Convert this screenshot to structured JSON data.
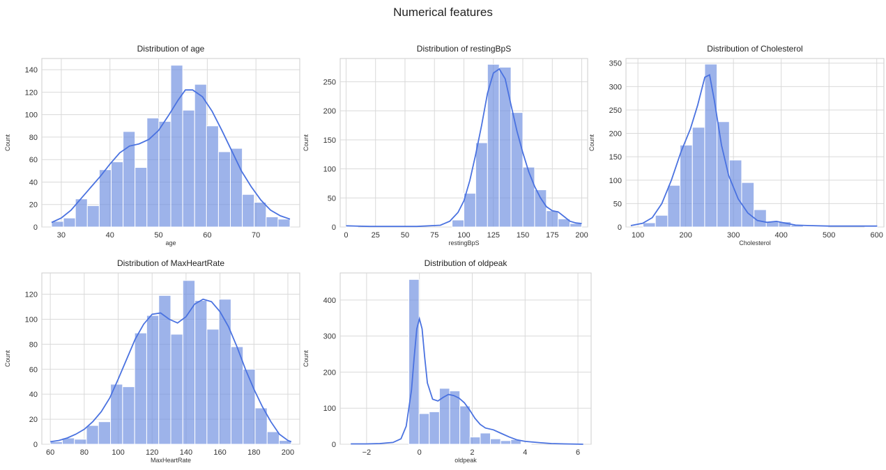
{
  "figure_title": "Numerical features",
  "chart_data": [
    {
      "type": "bar",
      "title": "Distribution of age",
      "xlabel": "age",
      "ylabel": "Count",
      "xlim": [
        26,
        79
      ],
      "ylim": [
        0,
        150
      ],
      "xticks": [
        30,
        40,
        50,
        60,
        70
      ],
      "yticks": [
        0,
        20,
        40,
        60,
        80,
        100,
        120,
        140
      ],
      "grid": true,
      "series": [
        {
          "bin_edges": [
            28,
            30.45,
            32.9,
            35.35,
            37.8,
            40.25,
            42.7,
            45.15,
            47.6,
            50.05,
            52.5,
            54.95,
            57.4,
            59.85,
            62.3,
            64.75,
            67.2,
            69.65,
            72.1,
            74.55,
            77
          ],
          "counts": [
            5,
            8,
            25,
            19,
            51,
            58,
            85,
            53,
            97,
            94,
            144,
            104,
            127,
            90,
            67,
            70,
            29,
            22,
            9,
            7
          ],
          "kde_x": [
            28,
            30,
            32,
            34,
            36,
            38,
            40,
            42,
            44,
            46,
            48,
            50,
            52,
            54,
            55.5,
            57,
            59,
            61,
            63,
            65,
            67,
            69,
            71,
            73,
            75,
            77
          ],
          "kde_y": [
            4,
            8,
            15,
            25,
            35,
            45,
            56,
            66,
            72,
            74,
            78,
            86,
            99,
            113,
            122,
            122,
            116,
            103,
            86,
            68,
            50,
            36,
            24,
            15,
            10,
            7
          ]
        }
      ]
    },
    {
      "type": "bar",
      "title": "Distribution of restingBpS",
      "xlabel": "restingBpS",
      "ylabel": "Count",
      "xlim": [
        -5,
        205
      ],
      "ylim": [
        0,
        290
      ],
      "xticks": [
        0,
        25,
        50,
        75,
        100,
        125,
        150,
        175,
        200
      ],
      "yticks": [
        0,
        50,
        100,
        150,
        200,
        250
      ],
      "grid": true,
      "series": [
        {
          "bin_edges": [
            0,
            10,
            20,
            30,
            40,
            50,
            60,
            70,
            80,
            90,
            100,
            110,
            120,
            130,
            140,
            150,
            160,
            170,
            180,
            190,
            200
          ],
          "counts": [
            1,
            0,
            0,
            0,
            0,
            0,
            0,
            0,
            0,
            12,
            58,
            145,
            280,
            275,
            197,
            103,
            64,
            28,
            14,
            6
          ],
          "kde_x": [
            0,
            20,
            40,
            60,
            80,
            88,
            95,
            100,
            105,
            110,
            115,
            120,
            125,
            130,
            135,
            140,
            145,
            150,
            155,
            160,
            165,
            170,
            175,
            180,
            185,
            190,
            195,
            200
          ],
          "kde_y": [
            2,
            1,
            1,
            1,
            3,
            10,
            25,
            45,
            80,
            125,
            175,
            230,
            265,
            272,
            255,
            210,
            165,
            128,
            95,
            70,
            50,
            35,
            28,
            26,
            18,
            10,
            7,
            6
          ]
        }
      ]
    },
    {
      "type": "bar",
      "title": "Distribution of Cholesterol",
      "xlabel": "Cholesterol",
      "ylabel": "Count",
      "xlim": [
        75,
        615
      ],
      "ylim": [
        0,
        360
      ],
      "xticks": [
        100,
        200,
        300,
        400,
        500,
        600
      ],
      "yticks": [
        0,
        50,
        100,
        150,
        200,
        250,
        300,
        350
      ],
      "grid": true,
      "series": [
        {
          "bin_edges": [
            85,
            110.8,
            136.6,
            162.4,
            188.2,
            214,
            239.8,
            265.6,
            291.4,
            317.2,
            343,
            368.8,
            394.6,
            420.4,
            446.2,
            472,
            497.8,
            523.6,
            549.4,
            575.2,
            601
          ],
          "counts": [
            0,
            9,
            25,
            89,
            175,
            213,
            348,
            225,
            143,
            95,
            37,
            12,
            11,
            4,
            1,
            1,
            0,
            0,
            0,
            1
          ],
          "kde_x": [
            85,
            110,
            130,
            150,
            170,
            190,
            210,
            225,
            240,
            250,
            260,
            275,
            290,
            310,
            330,
            350,
            370,
            390,
            410,
            430,
            460,
            500,
            550,
            601
          ],
          "kde_y": [
            3,
            8,
            20,
            50,
            100,
            160,
            210,
            260,
            320,
            325,
            270,
            175,
            110,
            60,
            30,
            14,
            10,
            12,
            8,
            4,
            3,
            2,
            2,
            2
          ]
        }
      ]
    },
    {
      "type": "bar",
      "title": "Distribution of MaxHeartRate",
      "xlabel": "MaxHeartRate",
      "ylabel": "Count",
      "xlim": [
        55,
        207
      ],
      "ylim": [
        0,
        137
      ],
      "xticks": [
        60,
        80,
        100,
        120,
        140,
        160,
        180,
        200
      ],
      "yticks": [
        0,
        20,
        40,
        60,
        80,
        100,
        120
      ],
      "grid": true,
      "series": [
        {
          "bin_edges": [
            60,
            67.1,
            74.2,
            81.3,
            88.4,
            95.5,
            102.6,
            109.7,
            116.8,
            123.9,
            131,
            138.1,
            145.2,
            152.3,
            159.4,
            166.5,
            173.6,
            180.7,
            187.8,
            194.9,
            202
          ],
          "counts": [
            2,
            5,
            4,
            15,
            18,
            48,
            46,
            89,
            103,
            119,
            88,
            131,
            115,
            92,
            116,
            78,
            60,
            29,
            10,
            3
          ],
          "kde_x": [
            60,
            65,
            70,
            75,
            80,
            85,
            90,
            95,
            100,
            105,
            110,
            115,
            120,
            125,
            130,
            135,
            140,
            145,
            150,
            155,
            160,
            165,
            170,
            175,
            180,
            185,
            190,
            195,
            200,
            202
          ],
          "kde_y": [
            2,
            3,
            5,
            8,
            12,
            18,
            26,
            37,
            52,
            68,
            84,
            96,
            104,
            105,
            100,
            97,
            102,
            112,
            116,
            114,
            106,
            94,
            78,
            60,
            44,
            30,
            18,
            8,
            3,
            2
          ]
        }
      ]
    },
    {
      "type": "bar",
      "title": "Distribution of oldpeak",
      "xlabel": "oldpeak",
      "ylabel": "Count",
      "xlim": [
        -3,
        6.5
      ],
      "ylim": [
        0,
        475
      ],
      "xticks": [
        -2,
        0,
        2,
        4,
        6
      ],
      "yticks": [
        0,
        100,
        200,
        300,
        400
      ],
      "grid": true,
      "series": [
        {
          "bin_edges": [
            -0.4,
            -0.014,
            0.372,
            0.758,
            1.144,
            1.53,
            1.916,
            2.302,
            2.688,
            3.074,
            3.46,
            3.846,
            4.232
          ],
          "counts": [
            457,
            85,
            90,
            155,
            148,
            106,
            20,
            31,
            15,
            10,
            13,
            1
          ],
          "kde_x": [
            -2.6,
            -2.0,
            -1.5,
            -1.0,
            -0.7,
            -0.5,
            -0.3,
            -0.2,
            -0.1,
            0.0,
            0.1,
            0.2,
            0.3,
            0.5,
            0.7,
            0.9,
            1.1,
            1.3,
            1.5,
            1.7,
            1.9,
            2.1,
            2.3,
            2.5,
            2.8,
            3.1,
            3.4,
            3.7,
            4.0,
            4.3,
            4.6,
            5.0,
            5.5,
            6.2
          ],
          "kde_y": [
            1,
            1,
            2,
            5,
            15,
            50,
            150,
            240,
            320,
            348,
            320,
            240,
            170,
            125,
            120,
            130,
            138,
            135,
            128,
            115,
            95,
            72,
            55,
            45,
            40,
            30,
            20,
            12,
            8,
            6,
            4,
            2,
            1,
            0
          ]
        }
      ]
    }
  ]
}
